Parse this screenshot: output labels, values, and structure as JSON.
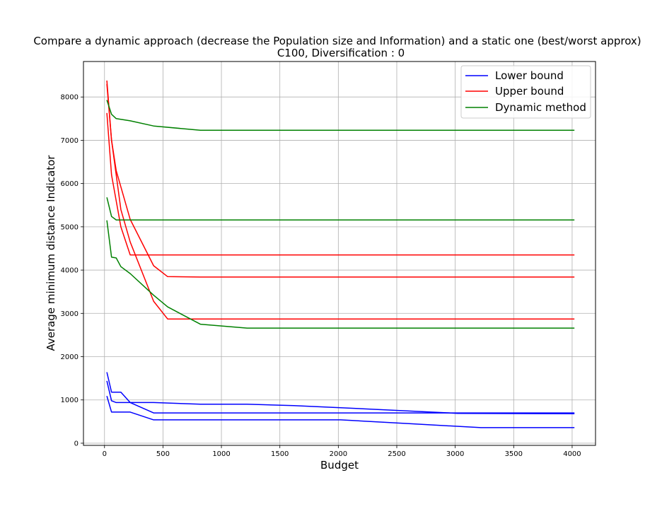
{
  "chart_data": {
    "type": "line",
    "title": "Compare a dynamic approach (decrease the Population size and Information) and a static one (best/worst approx)",
    "subtitle": "C100, Diversification : 0",
    "xlabel": "Budget",
    "ylabel": "Average minimum distance Indicator",
    "xlim": [
      -180,
      4200
    ],
    "ylim": [
      -50,
      8820
    ],
    "xticks": [
      0,
      500,
      1000,
      1500,
      2000,
      2500,
      3000,
      3500,
      4000
    ],
    "yticks": [
      0,
      1000,
      2000,
      3000,
      4000,
      5000,
      6000,
      7000,
      8000
    ],
    "grid": true,
    "legend_position": "top-right",
    "legend": [
      {
        "label": "Lower bound",
        "color": "#0000ff"
      },
      {
        "label": "Upper bound",
        "color": "#ff0000"
      },
      {
        "label": "Dynamic method",
        "color": "#008000"
      }
    ],
    "series": [
      {
        "group": "Lower bound",
        "color": "#0000ff",
        "points": [
          [
            20,
            1640
          ],
          [
            60,
            1180
          ],
          [
            140,
            1180
          ],
          [
            220,
            940
          ],
          [
            420,
            940
          ],
          [
            820,
            900
          ],
          [
            1220,
            900
          ],
          [
            1620,
            870
          ],
          [
            2020,
            820
          ],
          [
            3020,
            690
          ],
          [
            4020,
            680
          ]
        ]
      },
      {
        "group": "Lower bound",
        "color": "#0000ff",
        "points": [
          [
            20,
            1440
          ],
          [
            60,
            980
          ],
          [
            100,
            940
          ],
          [
            220,
            940
          ],
          [
            420,
            700
          ],
          [
            820,
            700
          ],
          [
            1620,
            700
          ],
          [
            2020,
            700
          ],
          [
            3020,
            700
          ],
          [
            4020,
            700
          ]
        ]
      },
      {
        "group": "Lower bound",
        "color": "#0000ff",
        "points": [
          [
            20,
            1090
          ],
          [
            60,
            720
          ],
          [
            220,
            720
          ],
          [
            420,
            540
          ],
          [
            820,
            540
          ],
          [
            1220,
            540
          ],
          [
            1620,
            540
          ],
          [
            2020,
            540
          ],
          [
            2620,
            450
          ],
          [
            3220,
            360
          ],
          [
            4020,
            360
          ]
        ]
      },
      {
        "group": "Upper bound",
        "color": "#ff0000",
        "points": [
          [
            20,
            8380
          ],
          [
            60,
            7000
          ],
          [
            100,
            6300
          ],
          [
            220,
            5170
          ],
          [
            420,
            4100
          ],
          [
            540,
            3850
          ],
          [
            820,
            3840
          ],
          [
            4020,
            3840
          ]
        ]
      },
      {
        "group": "Upper bound",
        "color": "#ff0000",
        "points": [
          [
            20,
            8300
          ],
          [
            60,
            7000
          ],
          [
            140,
            5400
          ],
          [
            220,
            4650
          ],
          [
            420,
            3280
          ],
          [
            540,
            2870
          ],
          [
            820,
            2870
          ],
          [
            4020,
            2870
          ]
        ]
      },
      {
        "group": "Upper bound",
        "color": "#ff0000",
        "points": [
          [
            20,
            7630
          ],
          [
            60,
            6200
          ],
          [
            140,
            5000
          ],
          [
            220,
            4350
          ],
          [
            420,
            4350
          ],
          [
            820,
            4350
          ],
          [
            4020,
            4350
          ]
        ]
      },
      {
        "group": "Dynamic method",
        "color": "#008000",
        "points": [
          [
            20,
            7930
          ],
          [
            60,
            7600
          ],
          [
            100,
            7500
          ],
          [
            220,
            7450
          ],
          [
            420,
            7330
          ],
          [
            820,
            7230
          ],
          [
            4020,
            7230
          ]
        ]
      },
      {
        "group": "Dynamic method",
        "color": "#008000",
        "points": [
          [
            20,
            5680
          ],
          [
            60,
            5240
          ],
          [
            100,
            5160
          ],
          [
            220,
            5160
          ],
          [
            420,
            5160
          ],
          [
            4020,
            5160
          ]
        ]
      },
      {
        "group": "Dynamic method",
        "color": "#008000",
        "points": [
          [
            20,
            5150
          ],
          [
            60,
            4300
          ],
          [
            100,
            4280
          ],
          [
            140,
            4080
          ],
          [
            220,
            3920
          ],
          [
            420,
            3420
          ],
          [
            540,
            3150
          ],
          [
            820,
            2750
          ],
          [
            1220,
            2660
          ],
          [
            4020,
            2660
          ]
        ]
      }
    ]
  }
}
